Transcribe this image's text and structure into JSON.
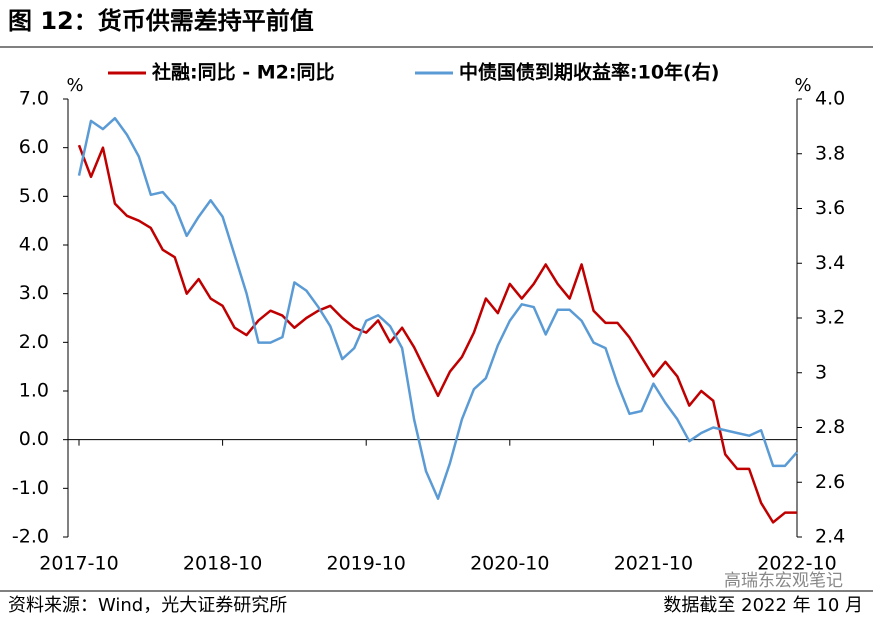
{
  "chart_data": {
    "type": "line",
    "title": "图 12：货币供需差持平前值",
    "source": "资料来源：Wind，光大证券研究所",
    "note": "数据截至 2022 年 10 月",
    "watermark": "高瑞东宏观笔记",
    "y_unit": "%",
    "y2_unit": "%",
    "x": [
      "2017-10",
      "2017-11",
      "2017-12",
      "2018-01",
      "2018-02",
      "2018-03",
      "2018-04",
      "2018-05",
      "2018-06",
      "2018-07",
      "2018-08",
      "2018-09",
      "2018-10",
      "2018-11",
      "2018-12",
      "2019-01",
      "2019-02",
      "2019-03",
      "2019-04",
      "2019-05",
      "2019-06",
      "2019-07",
      "2019-08",
      "2019-09",
      "2019-10",
      "2019-11",
      "2019-12",
      "2020-01",
      "2020-02",
      "2020-03",
      "2020-04",
      "2020-05",
      "2020-06",
      "2020-07",
      "2020-08",
      "2020-09",
      "2020-10",
      "2020-11",
      "2020-12",
      "2021-01",
      "2021-02",
      "2021-03",
      "2021-04",
      "2021-05",
      "2021-06",
      "2021-07",
      "2021-08",
      "2021-09",
      "2021-10",
      "2021-11",
      "2021-12",
      "2022-01",
      "2022-02",
      "2022-03",
      "2022-04",
      "2022-05",
      "2022-06",
      "2022-07",
      "2022-08",
      "2022-09",
      "2022-10"
    ],
    "xticks": [
      "2017-10",
      "2018-10",
      "2019-10",
      "2020-10",
      "2021-10",
      "2022-10"
    ],
    "ylim": [
      -2,
      7
    ],
    "yticks": [
      {
        "value": -2,
        "label": "-2.0"
      },
      {
        "value": -1,
        "label": "-1.0"
      },
      {
        "value": 0,
        "label": "0.0"
      },
      {
        "value": 1,
        "label": "1.0"
      },
      {
        "value": 2,
        "label": "2.0"
      },
      {
        "value": 3,
        "label": "3.0"
      },
      {
        "value": 4,
        "label": "4.0"
      },
      {
        "value": 5,
        "label": "5.0"
      },
      {
        "value": 6,
        "label": "6.0"
      },
      {
        "value": 7,
        "label": "7.0"
      }
    ],
    "y2lim": [
      2.4,
      4
    ],
    "y2ticks": [
      2.4,
      2.6,
      2.8,
      3,
      3.2,
      3.4,
      3.6,
      3.8,
      {
        "value": 4,
        "label": "4.0"
      }
    ],
    "legend": "top",
    "series": [
      {
        "name": "社融:同比 - M2:同比",
        "color": "#c00000",
        "axis": "y",
        "values": [
          6.05,
          5.4,
          6.0,
          4.85,
          4.6,
          4.5,
          4.35,
          3.9,
          3.75,
          3.0,
          3.3,
          2.9,
          2.75,
          2.3,
          2.15,
          2.45,
          2.65,
          2.55,
          2.3,
          2.5,
          2.65,
          2.75,
          2.5,
          2.3,
          2.2,
          2.45,
          2.0,
          2.3,
          1.9,
          1.4,
          0.9,
          1.4,
          1.7,
          2.2,
          2.9,
          2.6,
          3.2,
          2.9,
          3.2,
          3.6,
          3.2,
          2.9,
          3.6,
          2.65,
          2.4,
          2.4,
          2.1,
          1.7,
          1.3,
          1.6,
          1.3,
          0.7,
          1.0,
          0.8,
          -0.3,
          -0.6,
          -0.6,
          -1.3,
          -1.7,
          -1.5,
          -1.5
        ]
      },
      {
        "name": "中债国债到期收益率:10年(右)",
        "color": "#5b9bd5",
        "axis": "y2",
        "values": [
          3.72,
          3.92,
          3.89,
          3.93,
          3.87,
          3.79,
          3.65,
          3.66,
          3.61,
          3.5,
          3.57,
          3.63,
          3.57,
          3.43,
          3.29,
          3.11,
          3.11,
          3.13,
          3.33,
          3.3,
          3.24,
          3.17,
          3.05,
          3.09,
          3.19,
          3.21,
          3.17,
          3.09,
          2.83,
          2.64,
          2.54,
          2.67,
          2.83,
          2.94,
          2.98,
          3.1,
          3.19,
          3.25,
          3.24,
          3.14,
          3.23,
          3.23,
          3.19,
          3.11,
          3.09,
          2.96,
          2.85,
          2.86,
          2.96,
          2.89,
          2.83,
          2.75,
          2.78,
          2.8,
          2.79,
          2.78,
          2.77,
          2.79,
          2.66,
          2.66,
          2.71
        ]
      }
    ]
  }
}
